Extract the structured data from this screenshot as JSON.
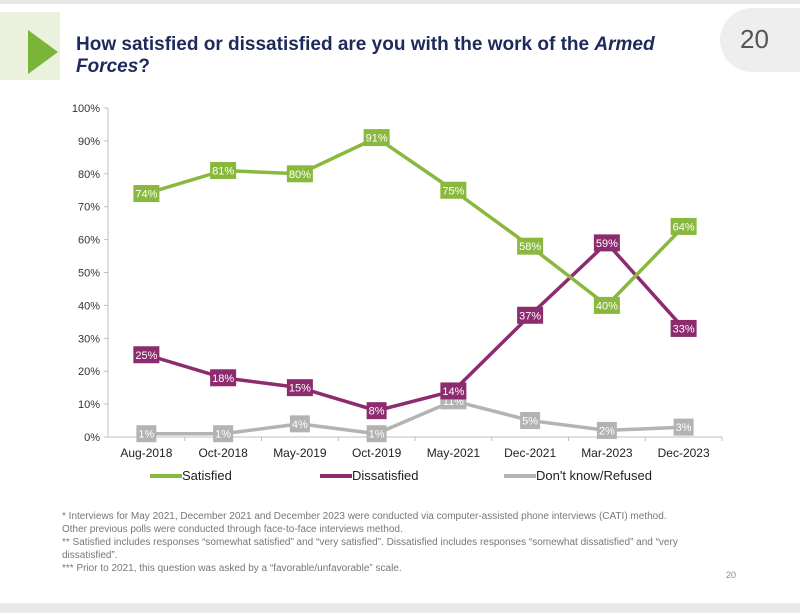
{
  "title": {
    "prefix": "How satisfied or dissatisfied are you with the work of the ",
    "italic": "Armed",
    "line2_italic": "Forces",
    "suffix": "?"
  },
  "page_number": "20",
  "footer_page_number": "20",
  "colors": {
    "satisfied": "#8ab83e",
    "dissatisfied": "#8c2b6e",
    "dont_know": "#b3b3b3",
    "accent": "#7ab53a",
    "title": "#1c2a5c"
  },
  "chart_data": {
    "type": "line",
    "categories": [
      "Aug-2018",
      "Oct-2018",
      "May-2019",
      "Oct-2019",
      "May-2021",
      "Dec-2021",
      "Mar-2023",
      "Dec-2023"
    ],
    "series": [
      {
        "name": "Satisfied",
        "values": [
          74,
          81,
          80,
          91,
          75,
          58,
          40,
          64
        ],
        "labels": [
          "74%",
          "81%",
          "80%",
          "91%",
          "75%",
          "58%",
          "40%",
          "64%"
        ]
      },
      {
        "name": "Dissatisfied",
        "values": [
          25,
          18,
          15,
          8,
          14,
          37,
          59,
          33
        ],
        "labels": [
          "25%",
          "18%",
          "15%",
          "8%",
          "14%",
          "37%",
          "59%",
          "33%"
        ]
      },
      {
        "name": "Don't know/Refused",
        "values": [
          1,
          1,
          4,
          1,
          11,
          5,
          2,
          3
        ],
        "labels": [
          "1%",
          "1%",
          "4%",
          "1%",
          "11%",
          "5%",
          "2%",
          "3%"
        ]
      }
    ],
    "yticks": [
      "0%",
      "10%",
      "20%",
      "30%",
      "40%",
      "50%",
      "60%",
      "70%",
      "80%",
      "90%",
      "100%"
    ],
    "ylim": [
      0,
      100
    ],
    "grid": false,
    "legend_position": "bottom"
  },
  "footnotes": [
    "* Interviews for May 2021, December 2021 and December 2023  were conducted via computer-assisted phone interviews (CATI) method.",
    "Other previous polls were conducted through face-to-face interviews method.",
    "** Satisfied includes responses “somewhat satisfied” and “very satisfied”. Dissatisfied includes responses “somewhat dissatisfied” and “very",
    "dissatisfied”.",
    "*** Prior to 2021, this question was asked by a “favorable/unfavorable” scale."
  ]
}
